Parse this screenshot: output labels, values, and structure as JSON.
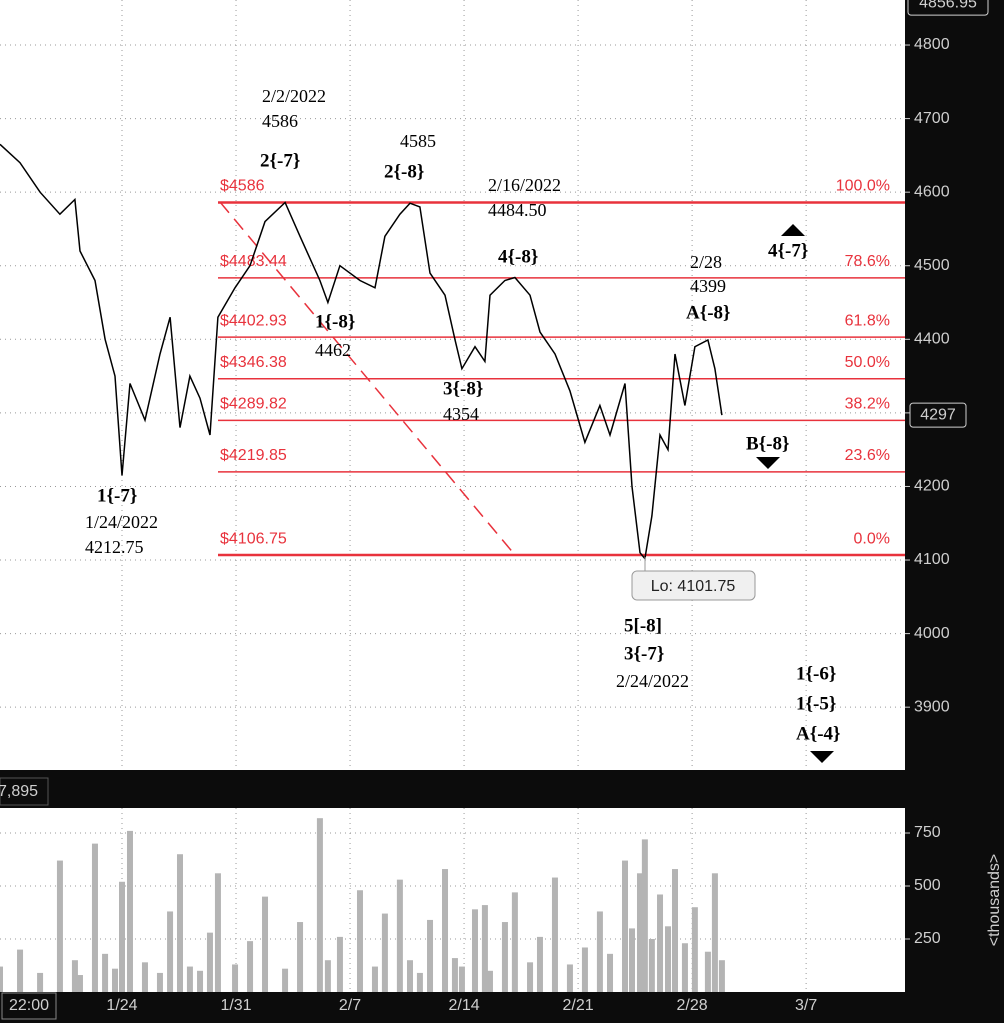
{
  "chart_data": [
    {
      "type": "line",
      "time_label": "22:00",
      "x": [
        16.51,
        17.74,
        18.97,
        20.19,
        21.11,
        21.42,
        22.34,
        22.96,
        23.57,
        24.0,
        24.49,
        25.41,
        26.33,
        26.95,
        27.56,
        28.17,
        28.79,
        29.4,
        29.89,
        30.94,
        31.86,
        32.78,
        34.01,
        34.93,
        36.15,
        36.64,
        37.38,
        38.61,
        39.53,
        40.14,
        41.06,
        41.68,
        42.29,
        42.91,
        43.83,
        44.44,
        44.87,
        45.67,
        46.28,
        46.59,
        47.51,
        48.12,
        49.05,
        49.66,
        50.58,
        51.5,
        52.42,
        53.34,
        53.96,
        54.88,
        55.31,
        55.8,
        56.1,
        56.53,
        57.03,
        57.52,
        57.95,
        58.56,
        59.17,
        59.97,
        60.4,
        60.83
      ],
      "xlim": [
        16.51,
        72.07
      ],
      "xticks": [
        {
          "value": 24,
          "label": "1/24"
        },
        {
          "value": 31,
          "label": "1/31"
        },
        {
          "value": 38,
          "label": "2/7"
        },
        {
          "value": 45,
          "label": "2/14"
        },
        {
          "value": 52,
          "label": "2/21"
        },
        {
          "value": 59,
          "label": "2/28"
        },
        {
          "value": 66,
          "label": "3/7"
        }
      ],
      "ylim": [
        3814.6,
        4861.2
      ],
      "yticks": [
        3900,
        4000,
        4100,
        4200,
        4300,
        4400,
        4500,
        4600,
        4700,
        4800
      ],
      "grid": true,
      "series": [
        {
          "color": "#000000",
          "values": [
            4665,
            4640,
            4600,
            4570,
            4590,
            4520,
            4480,
            4400,
            4350,
            4215,
            4340,
            4290,
            4380,
            4430,
            4280,
            4350,
            4320,
            4270,
            4430,
            4470,
            4500,
            4560,
            4586,
            4540,
            4480,
            4450,
            4500,
            4480,
            4470,
            4540,
            4570,
            4585,
            4580,
            4490,
            4460,
            4400,
            4360,
            4390,
            4370,
            4460,
            4480,
            4484,
            4460,
            4410,
            4380,
            4330,
            4260,
            4310,
            4270,
            4340,
            4200,
            4110,
            4102,
            4160,
            4270,
            4250,
            4380,
            4310,
            4390,
            4399,
            4360,
            4297
          ]
        }
      ],
      "high_value": 4856.95,
      "last_value": 4297,
      "low_callout": {
        "value": 4101.75,
        "label": "Lo: 4101.75"
      },
      "levels_color": "#e8323c",
      "levels": [
        {
          "value": 4586,
          "label": "$4586",
          "ratio": {
            "value": 100,
            "label": "100.0%"
          }
        },
        {
          "value": 4483.44,
          "label": "$4483.44",
          "ratio": {
            "value": 78.6,
            "label": "78.6%"
          }
        },
        {
          "value": 4402.93,
          "label": "$4402.93",
          "ratio": {
            "value": 61.8,
            "label": "61.8%"
          }
        },
        {
          "value": 4346.38,
          "label": "$4346.38",
          "ratio": {
            "value": 50,
            "label": "50.0%"
          }
        },
        {
          "value": 4289.82,
          "label": "$4289.82",
          "ratio": {
            "value": 38.2,
            "label": "38.2%"
          }
        },
        {
          "value": 4219.85,
          "label": "$4219.85",
          "ratio": {
            "value": 23.6,
            "label": "23.6%"
          }
        },
        {
          "value": 4106.75,
          "label": "$4106.75",
          "ratio": {
            "value": 0,
            "label": "0.0%"
          }
        }
      ],
      "annotations": [
        "2/2/2022",
        "4586",
        "2{-7}",
        "4585",
        "2{-8}",
        "2/16/2022",
        "4484.50",
        "4{-8}",
        "2/28",
        "4399",
        "A{-8}",
        "4{-7}",
        "1{-8}",
        "4462",
        "3{-8}",
        "4354",
        "B{-8}",
        "1{-7}",
        "1/24/2022",
        "4212.75",
        "5[-8]",
        "3{-7}",
        "2/24/2022",
        "1{-6}",
        "1{-5}",
        "A{-4}"
      ]
    },
    {
      "type": "bar",
      "color": "#b4b4b4",
      "x": [
        16.51,
        17.74,
        18.97,
        20.19,
        21.11,
        21.42,
        22.34,
        22.96,
        23.57,
        24.0,
        24.49,
        25.41,
        26.33,
        26.95,
        27.56,
        28.17,
        28.79,
        29.4,
        29.89,
        30.94,
        31.86,
        32.78,
        34.01,
        34.93,
        36.15,
        36.64,
        37.38,
        38.61,
        39.53,
        40.14,
        41.06,
        41.68,
        42.29,
        42.91,
        43.83,
        44.44,
        44.87,
        45.67,
        46.28,
        46.59,
        47.51,
        48.12,
        49.05,
        49.66,
        50.58,
        51.5,
        52.42,
        53.34,
        53.96,
        54.88,
        55.31,
        55.8,
        56.1,
        56.53,
        57.03,
        57.52,
        57.95,
        58.56,
        59.17,
        59.97,
        60.4,
        60.83
      ],
      "values": [
        120,
        200,
        90,
        620,
        150,
        80,
        700,
        180,
        110,
        520,
        760,
        140,
        90,
        380,
        650,
        120,
        100,
        280,
        560,
        130,
        240,
        450,
        110,
        330,
        820,
        150,
        260,
        480,
        120,
        370,
        530,
        150,
        90,
        340,
        580,
        160,
        120,
        390,
        410,
        100,
        330,
        470,
        140,
        260,
        540,
        130,
        210,
        380,
        180,
        620,
        300,
        560,
        720,
        250,
        460,
        310,
        580,
        230,
        400,
        190,
        560,
        150
      ],
      "ylim": [
        0,
        868
      ],
      "yticks": [
        250,
        500,
        750
      ],
      "ylabel": "<thousands>",
      "last_label": {
        "value": 7895,
        "label": "7,895"
      }
    }
  ]
}
